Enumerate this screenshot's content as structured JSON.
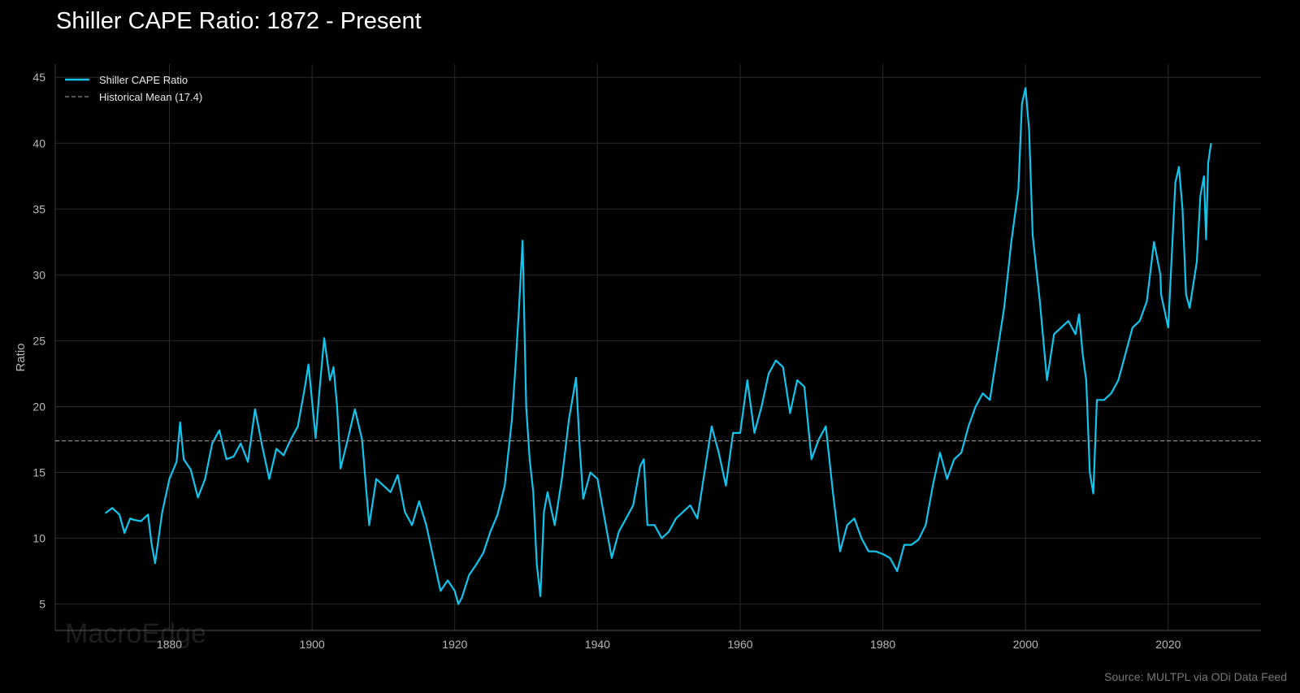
{
  "header": {
    "title": "Shiller CAPE Ratio: 1872 - Present"
  },
  "watermark": "MacroEdge",
  "source": "Source: MULTPL via ODi Data Feed",
  "colors": {
    "background": "#000000",
    "series": "#13c4ec",
    "mean": "#8a8a8a",
    "grid": "#2a2a2a",
    "axis_text": "#b8b8b8"
  },
  "chart_data": {
    "type": "line",
    "title": "Shiller CAPE Ratio: 1872 - Present",
    "xlabel": "",
    "ylabel": "Ratio",
    "xlim": [
      1864,
      2033
    ],
    "ylim": [
      3,
      46
    ],
    "x_ticks": [
      1880,
      1900,
      1920,
      1940,
      1960,
      1980,
      2000,
      2020
    ],
    "y_ticks": [
      5,
      10,
      15,
      20,
      25,
      30,
      35,
      40,
      45
    ],
    "grid": true,
    "legend_position": "top-left",
    "legend": [
      "Shiller CAPE Ratio",
      "Historical Mean (17.4)"
    ],
    "series": [
      {
        "name": "Shiller CAPE Ratio",
        "style": "solid",
        "x": [
          1871.0,
          1872.0,
          1873.0,
          1873.7,
          1874.5,
          1875.0,
          1876.0,
          1877.0,
          1877.5,
          1878.0,
          1879.0,
          1880.0,
          1881.0,
          1881.5,
          1882.0,
          1883.0,
          1884.0,
          1885.0,
          1886.0,
          1887.0,
          1888.0,
          1889.0,
          1890.0,
          1891.0,
          1892.0,
          1893.0,
          1894.0,
          1895.0,
          1896.0,
          1897.0,
          1898.0,
          1899.0,
          1899.5,
          1900.5,
          1901.0,
          1901.7,
          1902.5,
          1903.0,
          1903.5,
          1904.0,
          1905.0,
          1906.0,
          1907.0,
          1908.0,
          1909.0,
          1910.0,
          1911.0,
          1912.0,
          1913.0,
          1914.0,
          1915.0,
          1916.0,
          1917.0,
          1918.0,
          1919.0,
          1920.0,
          1920.5,
          1921.0,
          1922.0,
          1923.0,
          1924.0,
          1925.0,
          1926.0,
          1927.0,
          1928.0,
          1928.5,
          1929.0,
          1929.5,
          1930.0,
          1930.5,
          1931.0,
          1931.5,
          1932.0,
          1932.5,
          1933.0,
          1934.0,
          1935.0,
          1936.0,
          1937.0,
          1937.5,
          1938.0,
          1939.0,
          1940.0,
          1941.0,
          1942.0,
          1943.0,
          1944.0,
          1945.0,
          1946.0,
          1946.5,
          1947.0,
          1948.0,
          1949.0,
          1950.0,
          1951.0,
          1952.0,
          1953.0,
          1954.0,
          1955.0,
          1956.0,
          1957.0,
          1958.0,
          1959.0,
          1960.0,
          1961.0,
          1962.0,
          1963.0,
          1964.0,
          1965.0,
          1966.0,
          1967.0,
          1968.0,
          1969.0,
          1970.0,
          1971.0,
          1972.0,
          1973.0,
          1974.0,
          1975.0,
          1976.0,
          1977.0,
          1978.0,
          1979.0,
          1980.0,
          1981.0,
          1982.0,
          1983.0,
          1984.0,
          1985.0,
          1986.0,
          1987.0,
          1988.0,
          1989.0,
          1990.0,
          1991.0,
          1992.0,
          1993.0,
          1994.0,
          1995.0,
          1996.0,
          1997.0,
          1998.0,
          1999.0,
          1999.5,
          2000.0,
          2000.5,
          2001.0,
          2002.0,
          2003.0,
          2004.0,
          2005.0,
          2006.0,
          2007.0,
          2007.5,
          2008.0,
          2008.5,
          2009.0,
          2009.5,
          2010.0,
          2011.0,
          2012.0,
          2013.0,
          2014.0,
          2015.0,
          2016.0,
          2017.0,
          2018.0,
          2018.9,
          2019.0,
          2020.0,
          2020.5,
          2021.0,
          2021.5,
          2022.0,
          2022.5,
          2023.0,
          2024.0,
          2024.5,
          2025.0,
          2025.3,
          2025.6,
          2026.0
        ],
        "y": [
          11.9,
          12.3,
          11.8,
          10.4,
          11.5,
          11.4,
          11.3,
          11.8,
          9.6,
          8.1,
          12.0,
          14.5,
          15.8,
          18.8,
          16.0,
          15.2,
          13.1,
          14.5,
          17.2,
          18.2,
          16.0,
          16.2,
          17.2,
          15.8,
          19.8,
          17.0,
          14.5,
          16.8,
          16.3,
          17.5,
          18.5,
          21.5,
          23.2,
          17.6,
          21.0,
          25.2,
          22.0,
          23.0,
          20.0,
          15.3,
          17.5,
          19.8,
          17.5,
          11.0,
          14.5,
          14.0,
          13.5,
          14.8,
          12.0,
          11.0,
          12.8,
          11.0,
          8.5,
          6.0,
          6.8,
          6.0,
          5.0,
          5.5,
          7.2,
          8.0,
          8.9,
          10.5,
          11.8,
          14.0,
          19.0,
          23.0,
          27.5,
          32.6,
          20.0,
          16.0,
          13.5,
          8.0,
          5.6,
          12.0,
          13.5,
          11.0,
          14.5,
          19.0,
          22.2,
          17.0,
          13.0,
          15.0,
          14.5,
          11.5,
          8.5,
          10.5,
          11.5,
          12.5,
          15.5,
          16.0,
          11.0,
          11.0,
          10.0,
          10.5,
          11.5,
          12.0,
          12.5,
          11.5,
          15.0,
          18.5,
          16.5,
          14.0,
          18.0,
          18.0,
          22.0,
          18.0,
          20.0,
          22.5,
          23.5,
          23.0,
          19.5,
          22.0,
          21.5,
          16.0,
          17.5,
          18.5,
          13.5,
          9.0,
          11.0,
          11.5,
          10.0,
          9.0,
          9.0,
          8.8,
          8.5,
          7.5,
          9.5,
          9.5,
          9.9,
          11.0,
          14.0,
          16.5,
          14.5,
          16.0,
          16.5,
          18.5,
          20.0,
          21.0,
          20.5,
          24.0,
          27.5,
          32.5,
          36.5,
          43.0,
          44.2,
          41.0,
          33.0,
          28.0,
          22.0,
          25.5,
          26.0,
          26.5,
          25.5,
          27.0,
          24.0,
          22.0,
          15.0,
          13.4,
          20.5,
          20.5,
          21.0,
          22.0,
          24.0,
          26.0,
          26.5,
          28.0,
          32.5,
          30.0,
          28.5,
          26.0,
          31.5,
          37.0,
          38.2,
          35.0,
          28.5,
          27.5,
          31.0,
          36.0,
          37.5,
          32.7,
          38.5,
          40.0
        ]
      },
      {
        "name": "Historical Mean (17.4)",
        "style": "dashed",
        "x": [
          1864,
          2033
        ],
        "y": [
          17.4,
          17.4
        ]
      }
    ]
  }
}
